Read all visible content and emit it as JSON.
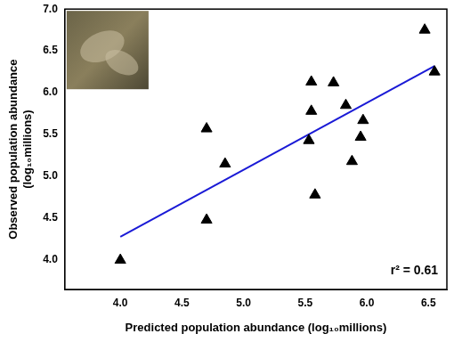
{
  "chart_data": {
    "type": "scatter",
    "x_label": "Predicted population abundance (log₁₀millions)",
    "y_label": [
      "Observed population abundance",
      "(log₁₀millions)"
    ],
    "annotation": "r² = 0.61",
    "x": [
      4.0,
      4.7,
      4.7,
      4.85,
      5.53,
      5.55,
      5.55,
      5.58,
      5.73,
      5.83,
      5.88,
      5.95,
      5.97,
      6.47,
      6.55
    ],
    "values": [
      4.0,
      5.57,
      4.48,
      5.15,
      5.43,
      5.78,
      6.13,
      4.78,
      6.12,
      5.85,
      5.18,
      5.47,
      5.67,
      6.75,
      6.25
    ],
    "color": "#000000",
    "marker": "triangle",
    "fit": {
      "x": [
        4.0,
        6.55
      ],
      "values": [
        4.28,
        6.32
      ],
      "color": "#1a1ad6",
      "line_style": "solid"
    },
    "xlim": [
      3.55,
      6.65
    ],
    "xticks": [
      {
        "value": 4,
        "label": "4.0"
      },
      {
        "value": 4.5,
        "label": "4.5"
      },
      {
        "value": 5,
        "label": "5.0"
      },
      {
        "value": 5.5,
        "label": "5.5"
      },
      {
        "value": 6,
        "label": "6.0"
      },
      {
        "value": 6.5,
        "label": "6.5"
      }
    ],
    "ylim": [
      3.65,
      7.0
    ],
    "yticks": [
      {
        "value": 4,
        "label": "4.0"
      },
      {
        "value": 4.5,
        "label": "4.5"
      },
      {
        "value": 5,
        "label": "5.0"
      },
      {
        "value": 5.5,
        "label": "5.5"
      },
      {
        "value": 6,
        "label": "6.0"
      },
      {
        "value": 6.5,
        "label": "6.5"
      },
      {
        "value": 7,
        "label": "7.0"
      }
    ],
    "grid": false
  }
}
